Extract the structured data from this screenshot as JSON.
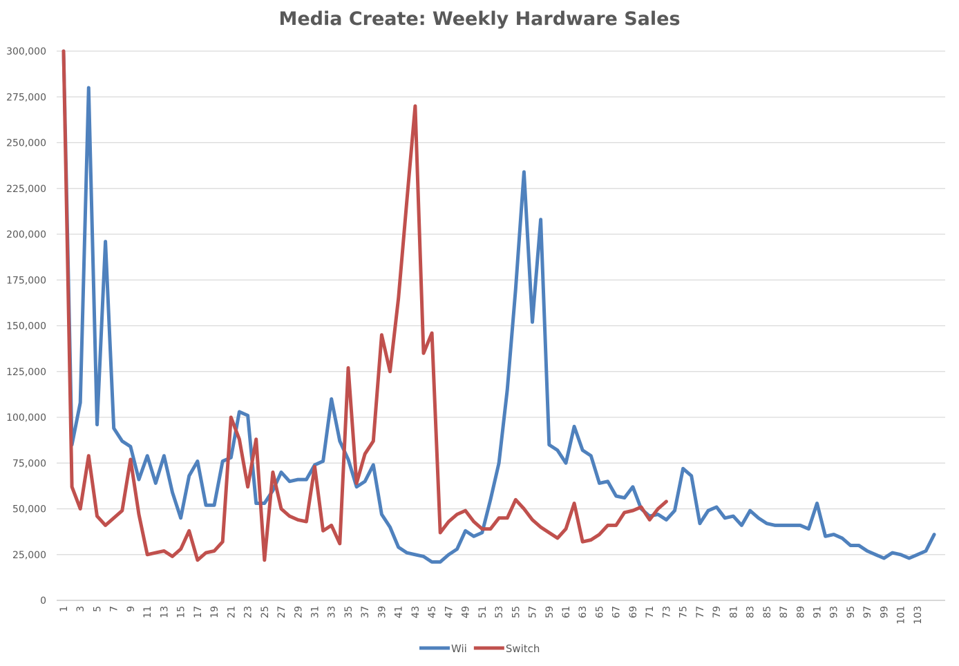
{
  "chart_data": {
    "type": "line",
    "title": "Media Create: Weekly Hardware Sales",
    "xlabel": "",
    "ylabel": "",
    "x_range": [
      1,
      104
    ],
    "x_tick_step": 2,
    "ylim": [
      0,
      300000
    ],
    "y_ticks": [
      0,
      25000,
      50000,
      75000,
      100000,
      125000,
      150000,
      175000,
      200000,
      225000,
      250000,
      275000,
      300000
    ],
    "y_tick_labels": [
      "0",
      "25,000",
      "50,000",
      "75,000",
      "100,000",
      "125,000",
      "150,000",
      "175,000",
      "200,000",
      "225,000",
      "250,000",
      "275,000",
      "300,000"
    ],
    "grid": "horizontal",
    "legend_position": "bottom",
    "series": [
      {
        "name": "Wii",
        "color": "#4f81bd",
        "values": [
          300000,
          85000,
          108000,
          280000,
          96000,
          196000,
          94000,
          87000,
          84000,
          66000,
          79000,
          64000,
          79000,
          59000,
          45000,
          68000,
          76000,
          52000,
          52000,
          76000,
          78000,
          103000,
          101000,
          53000,
          53000,
          60000,
          70000,
          65000,
          66000,
          66000,
          74000,
          76000,
          110000,
          87000,
          77000,
          62000,
          65000,
          74000,
          47000,
          40000,
          29000,
          26000,
          25000,
          24000,
          21000,
          21000,
          25000,
          28000,
          38000,
          35000,
          37000,
          55000,
          75000,
          115000,
          170000,
          234000,
          152000,
          208000,
          85000,
          82000,
          75000,
          95000,
          82000,
          79000,
          64000,
          65000,
          57000,
          56000,
          62000,
          50000,
          46000,
          47000,
          44000,
          49000,
          72000,
          68000,
          42000,
          49000,
          51000,
          45000,
          46000,
          41000,
          49000,
          45000,
          42000,
          41000,
          41000,
          41000,
          41000,
          39000,
          53000,
          35000,
          36000,
          34000,
          30000,
          30000,
          27000,
          25000,
          23000,
          26000,
          25000,
          23000,
          25000,
          27000,
          36000
        ]
      },
      {
        "name": "Switch",
        "color": "#c0504d",
        "values": [
          300000,
          62000,
          50000,
          79000,
          46000,
          41000,
          45000,
          49000,
          77000,
          47000,
          25000,
          26000,
          27000,
          24000,
          28000,
          38000,
          22000,
          26000,
          27000,
          32000,
          100000,
          88000,
          62000,
          88000,
          22000,
          70000,
          50000,
          46000,
          44000,
          43000,
          73000,
          38000,
          41000,
          31000,
          127000,
          64000,
          80000,
          87000,
          145000,
          125000,
          165000,
          218000,
          270000,
          135000,
          146000,
          37000,
          43000,
          47000,
          49000,
          43000,
          39000,
          39000,
          45000,
          45000,
          55000,
          50000,
          44000,
          40000,
          37000,
          34000,
          39000,
          53000,
          32000,
          33000,
          36000,
          41000,
          41000,
          48000,
          49000,
          51000,
          44000,
          50000,
          54000
        ]
      }
    ]
  },
  "legend": {
    "items": [
      {
        "label": "Wii",
        "color": "#4f81bd"
      },
      {
        "label": "Switch",
        "color": "#c0504d"
      }
    ]
  }
}
